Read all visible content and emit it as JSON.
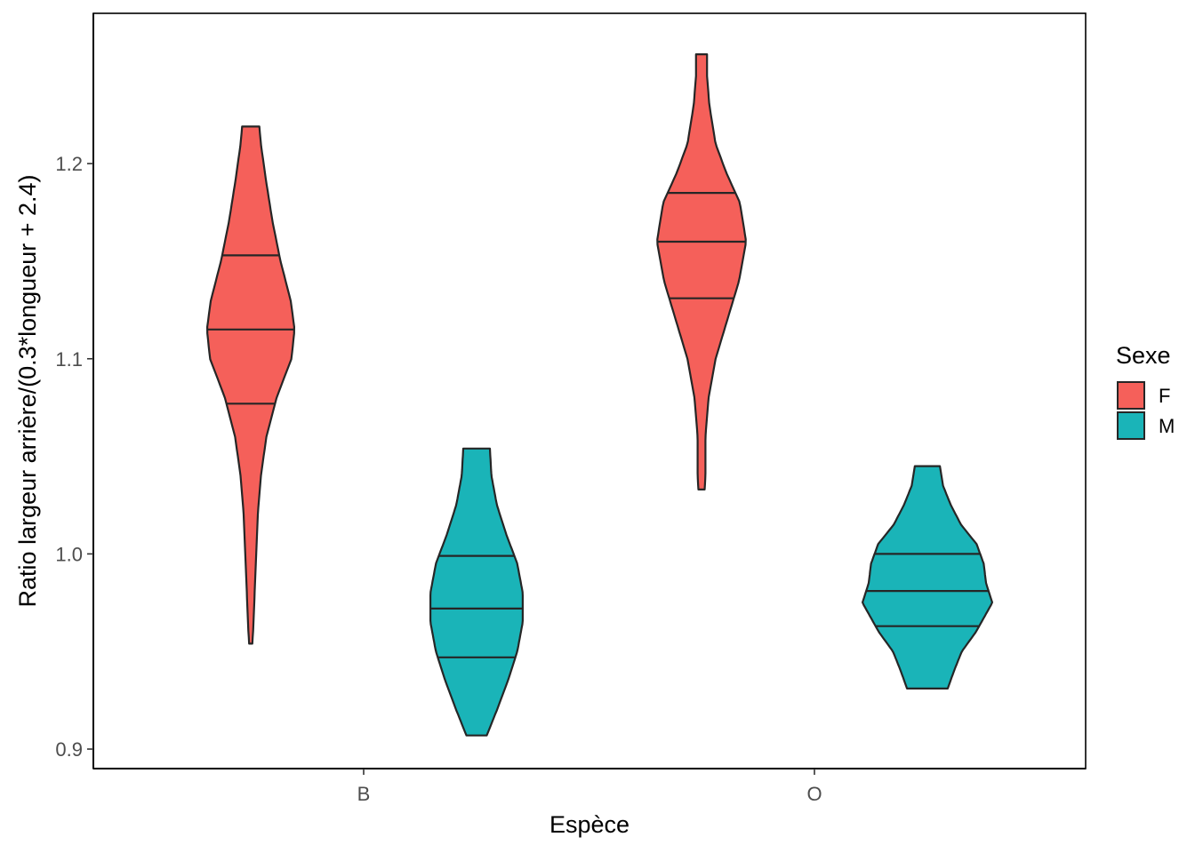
{
  "chart_data": {
    "type": "violin",
    "xlabel": "Espèce",
    "ylabel": "Ratio largeur arrière/(0.3*longueur + 2.4)",
    "categories": [
      "B",
      "O"
    ],
    "ylim": [
      0.89,
      1.277
    ],
    "yticks": [
      0.9,
      1.0,
      1.1,
      1.2
    ],
    "ytick_labels": [
      "0.9",
      "1.0",
      "1.1",
      "1.2"
    ],
    "grid": false,
    "legend": {
      "title": "Sexe",
      "placement": "right",
      "entries": [
        {
          "label": "F",
          "color": "#F8766D"
        },
        {
          "label": "M",
          "color": "#00BFC4"
        }
      ]
    },
    "colors": {
      "F": "#F5605A",
      "M": "#1AB4B8",
      "outline": "#262626"
    },
    "series": [
      {
        "name": "F",
        "violins": [
          {
            "category": "B",
            "min": 0.954,
            "max": 1.219,
            "quantiles": [
              1.077,
              1.115,
              1.153
            ],
            "density": [
              [
                0.954,
                0.02
              ],
              [
                0.96,
                0.03
              ],
              [
                0.98,
                0.05
              ],
              [
                1.0,
                0.07
              ],
              [
                1.02,
                0.09
              ],
              [
                1.04,
                0.13
              ],
              [
                1.06,
                0.2
              ],
              [
                1.08,
                0.33
              ],
              [
                1.1,
                0.52
              ],
              [
                1.115,
                0.56
              ],
              [
                1.13,
                0.51
              ],
              [
                1.15,
                0.38
              ],
              [
                1.17,
                0.28
              ],
              [
                1.19,
                0.2
              ],
              [
                1.21,
                0.13
              ],
              [
                1.219,
                0.11
              ]
            ]
          },
          {
            "category": "O",
            "min": 1.033,
            "max": 1.256,
            "quantiles": [
              1.131,
              1.16,
              1.185
            ],
            "density": [
              [
                1.033,
                0.04
              ],
              [
                1.04,
                0.05
              ],
              [
                1.06,
                0.05
              ],
              [
                1.08,
                0.09
              ],
              [
                1.1,
                0.18
              ],
              [
                1.12,
                0.33
              ],
              [
                1.14,
                0.48
              ],
              [
                1.16,
                0.57
              ],
              [
                1.18,
                0.49
              ],
              [
                1.195,
                0.32
              ],
              [
                1.21,
                0.18
              ],
              [
                1.23,
                0.1
              ],
              [
                1.245,
                0.07
              ],
              [
                1.256,
                0.07
              ]
            ]
          }
        ]
      },
      {
        "name": "M",
        "violins": [
          {
            "category": "B",
            "min": 0.907,
            "max": 1.054,
            "quantiles": [
              0.947,
              0.972,
              0.999
            ],
            "density": [
              [
                0.907,
                0.13
              ],
              [
                0.92,
                0.26
              ],
              [
                0.935,
                0.4
              ],
              [
                0.95,
                0.52
              ],
              [
                0.965,
                0.59
              ],
              [
                0.98,
                0.59
              ],
              [
                0.995,
                0.52
              ],
              [
                1.01,
                0.38
              ],
              [
                1.025,
                0.26
              ],
              [
                1.04,
                0.19
              ],
              [
                1.054,
                0.17
              ]
            ]
          },
          {
            "category": "O",
            "min": 0.931,
            "max": 1.045,
            "quantiles": [
              0.963,
              0.981,
              1.0
            ],
            "density": [
              [
                0.931,
                0.26
              ],
              [
                0.94,
                0.34
              ],
              [
                0.95,
                0.44
              ],
              [
                0.96,
                0.62
              ],
              [
                0.975,
                0.83
              ],
              [
                0.985,
                0.75
              ],
              [
                0.995,
                0.72
              ],
              [
                1.005,
                0.63
              ],
              [
                1.015,
                0.43
              ],
              [
                1.025,
                0.3
              ],
              [
                1.035,
                0.2
              ],
              [
                1.045,
                0.16
              ]
            ]
          }
        ]
      }
    ]
  }
}
